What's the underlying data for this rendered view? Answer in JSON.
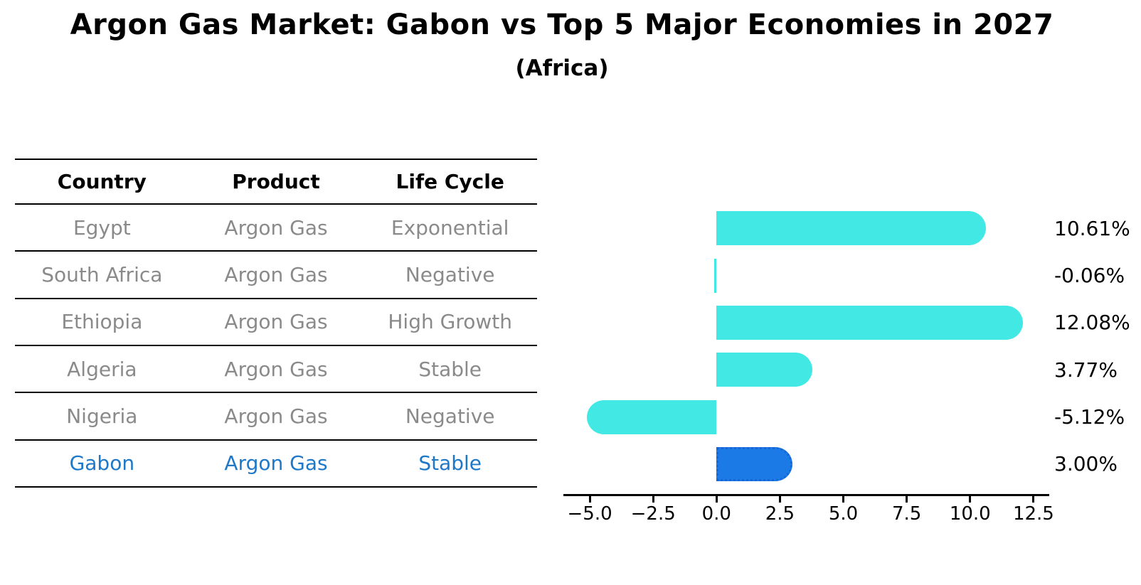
{
  "title": "Argon Gas Market: Gabon vs Top 5 Major Economies in 2027",
  "subtitle": "(Africa)",
  "table": {
    "headers": [
      "Country",
      "Product",
      "Life Cycle"
    ],
    "rows": [
      {
        "country": "Egypt",
        "product": "Argon Gas",
        "life_cycle": "Exponential",
        "highlight": false
      },
      {
        "country": "South Africa",
        "product": "Argon Gas",
        "life_cycle": "Negative",
        "highlight": false
      },
      {
        "country": "Ethiopia",
        "product": "Argon Gas",
        "life_cycle": "High Growth",
        "highlight": false
      },
      {
        "country": "Algeria",
        "product": "Argon Gas",
        "life_cycle": "Stable",
        "highlight": false
      },
      {
        "country": "Nigeria",
        "product": "Argon Gas",
        "life_cycle": "Negative",
        "highlight": false
      },
      {
        "country": "Gabon",
        "product": "Argon Gas",
        "life_cycle": "Stable",
        "highlight": true
      }
    ]
  },
  "chart_data": {
    "type": "bar",
    "orientation": "horizontal",
    "title": "Argon Gas Market: Gabon vs Top 5 Major Economies in 2027",
    "subtitle": "(Africa)",
    "categories": [
      "Egypt",
      "South Africa",
      "Ethiopia",
      "Algeria",
      "Nigeria",
      "Gabon"
    ],
    "values": [
      10.61,
      -0.06,
      12.08,
      3.77,
      -5.12,
      3.0
    ],
    "value_labels": [
      "10.61%",
      "-0.06%",
      "12.08%",
      "3.77%",
      "-5.12%",
      "3.00%"
    ],
    "x_ticks": [
      -5.0,
      -2.5,
      0.0,
      2.5,
      5.0,
      7.5,
      10.0,
      12.5
    ],
    "x_tick_labels": [
      "−5.0",
      "−2.5",
      "0.0",
      "2.5",
      "5.0",
      "7.5",
      "10.0",
      "12.5"
    ],
    "xlim": [
      -6.04,
      13.12
    ],
    "grid": false,
    "legend": false,
    "highlight_index": 5,
    "bar_color": "#42E8E4",
    "highlight_bar_color": "#1B7AE6",
    "highlight_bar_border": "#1666D8"
  },
  "colors": {
    "table_text_muted": "#8a8a8a",
    "table_highlight_text": "#1e78c8",
    "axis": "#000000",
    "background": "#ffffff"
  }
}
